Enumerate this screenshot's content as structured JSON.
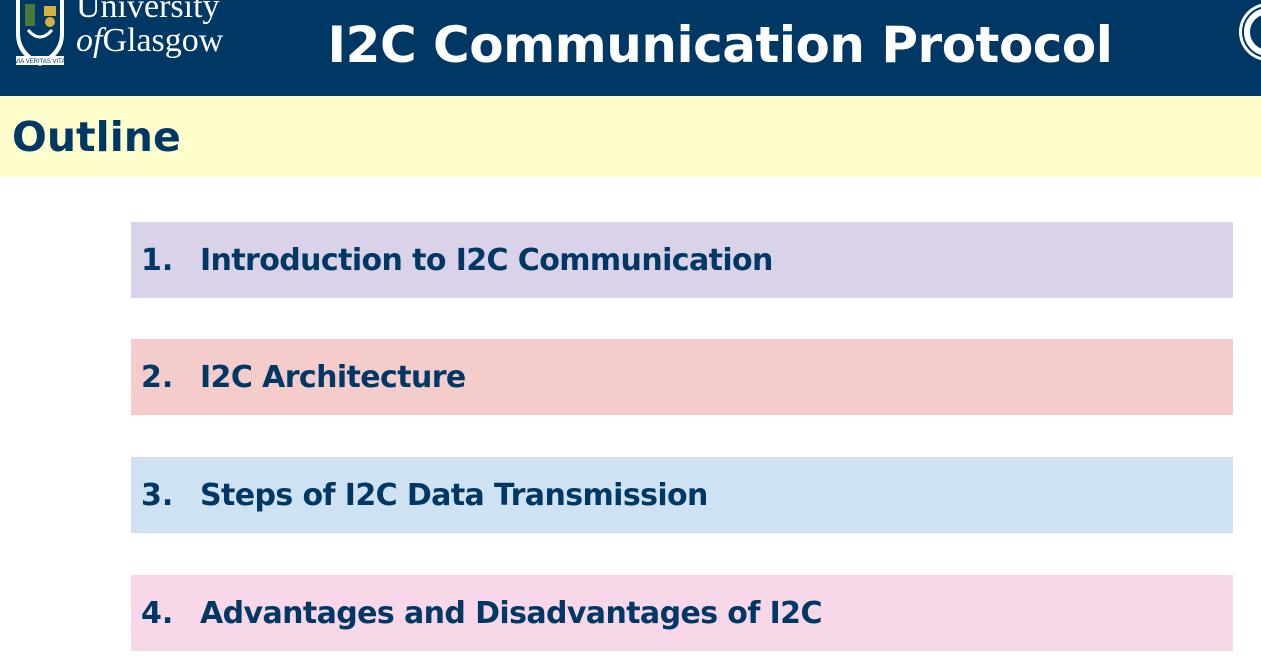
{
  "header": {
    "logo": {
      "line1": "University",
      "of": "of",
      "line2": "Glasgow",
      "motto": "VIA VERITAS VITA"
    },
    "title": "I2C Communication Protocol"
  },
  "outline": {
    "title": "Outline",
    "items": [
      {
        "number": "1.",
        "label": "Introduction to I2C Communication",
        "color": "#d9d2e9"
      },
      {
        "number": "2.",
        "label": "I2C Architecture",
        "color": "#f4cccc"
      },
      {
        "number": "3.",
        "label": "Steps of I2C Data Transmission",
        "color": "#cfe2f3"
      },
      {
        "number": "4.",
        "label": "Advantages and Disadvantages of I2C",
        "color": "#f8d7e8"
      }
    ]
  },
  "colors": {
    "header_bg": "#003865",
    "outline_bg": "#ffffcc",
    "text": "#003865"
  }
}
